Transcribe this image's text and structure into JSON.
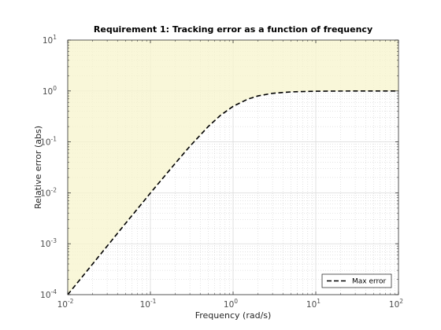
{
  "chart_data": {
    "type": "line",
    "title": "Requirement 1: Tracking error as a function of frequency",
    "xlabel": "Frequency (rad/s)",
    "ylabel": "Relative error (abs)",
    "x_scale": "log",
    "y_scale": "log",
    "xlim": [
      0.01,
      100
    ],
    "ylim": [
      0.0001,
      10
    ],
    "x_ticks": [
      0.01,
      0.1,
      1,
      10,
      100
    ],
    "x_tick_labels": [
      {
        "base": "10",
        "exp": "-2"
      },
      {
        "base": "10",
        "exp": "-1"
      },
      {
        "base": "10",
        "exp": "0"
      },
      {
        "base": "10",
        "exp": "1"
      },
      {
        "base": "10",
        "exp": "2"
      }
    ],
    "y_ticks": [
      0.0001,
      0.001,
      0.01,
      0.1,
      1,
      10
    ],
    "y_tick_labels": [
      {
        "base": "10",
        "exp": "-4"
      },
      {
        "base": "10",
        "exp": "-3"
      },
      {
        "base": "10",
        "exp": "-2"
      },
      {
        "base": "10",
        "exp": "-1"
      },
      {
        "base": "10",
        "exp": "0"
      },
      {
        "base": "10",
        "exp": "1"
      }
    ],
    "grid": true,
    "minor_grid": true,
    "legend_position": "bottom-right",
    "series": [
      {
        "name": "Max error",
        "style": "dashed",
        "color": "#000000",
        "x": [
          0.01,
          0.02,
          0.05,
          0.1,
          0.2,
          0.3,
          0.5,
          0.7,
          1,
          1.5,
          2,
          3,
          5,
          10,
          20,
          50,
          100
        ],
        "y": [
          0.0001,
          0.0004,
          0.0025,
          0.0099,
          0.038,
          0.082,
          0.2,
          0.33,
          0.5,
          0.69,
          0.8,
          0.9,
          0.96,
          0.99,
          0.997,
          1.0,
          1.0
        ]
      }
    ],
    "shaded_region": {
      "description_color": "#f7f4cc",
      "edge_color": "#e6e0a6"
    }
  }
}
